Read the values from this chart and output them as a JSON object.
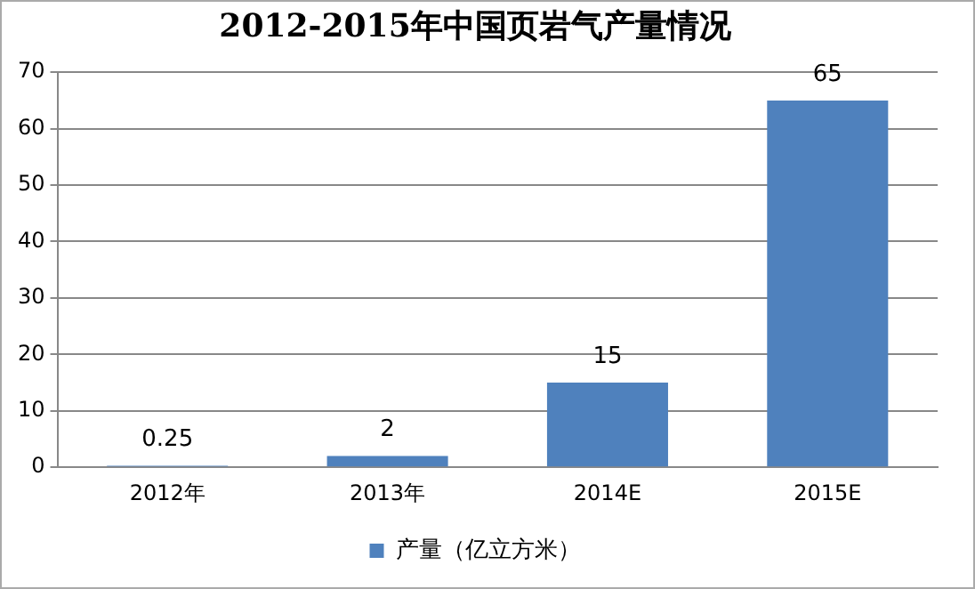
{
  "chart_data": {
    "type": "bar",
    "title": "2012-2015年中国页岩气产量情况",
    "categories": [
      "2012年",
      "2013年",
      "2014E",
      "2015E"
    ],
    "series": [
      {
        "name": "产量（亿立方米）",
        "color": "#4f81bd",
        "values": [
          0.25,
          2,
          15,
          65
        ]
      }
    ],
    "ylim": [
      0,
      70
    ],
    "yticks": [
      0,
      10,
      20,
      30,
      40,
      50,
      60,
      70
    ],
    "grid": "y",
    "legend": "bottom",
    "data_labels": true
  }
}
